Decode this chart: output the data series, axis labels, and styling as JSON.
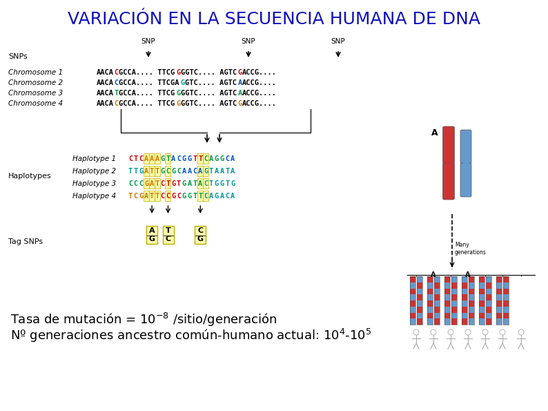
{
  "title": "VARIACIÓN EN LA SECUENCIA HUMANA DE DNA",
  "title_color": "#1111BB",
  "title_fontsize": 18,
  "bg_color": "#FFFFFF",
  "text_line1": "Tasa de mutación = 10$^{-8}$ /sitio/generación",
  "text_line2": "Nº generaciones ancestro común-humano actual: 10$^4$-10$^5$",
  "text_fontsize": 13,
  "text_color": "#000000",
  "snps_label": "SNPs",
  "haplo_label": "Haplotypes",
  "tagsnps_label": "Tag SNPs",
  "chrom_labels": [
    "Chromosome 1",
    "Chromosome 2",
    "Chromosome 3",
    "Chromosome 4"
  ],
  "haplo_labels_list": [
    "Haplotype 1",
    "Haplotype 2",
    "Haplotype 3",
    "Haplotype 4"
  ]
}
